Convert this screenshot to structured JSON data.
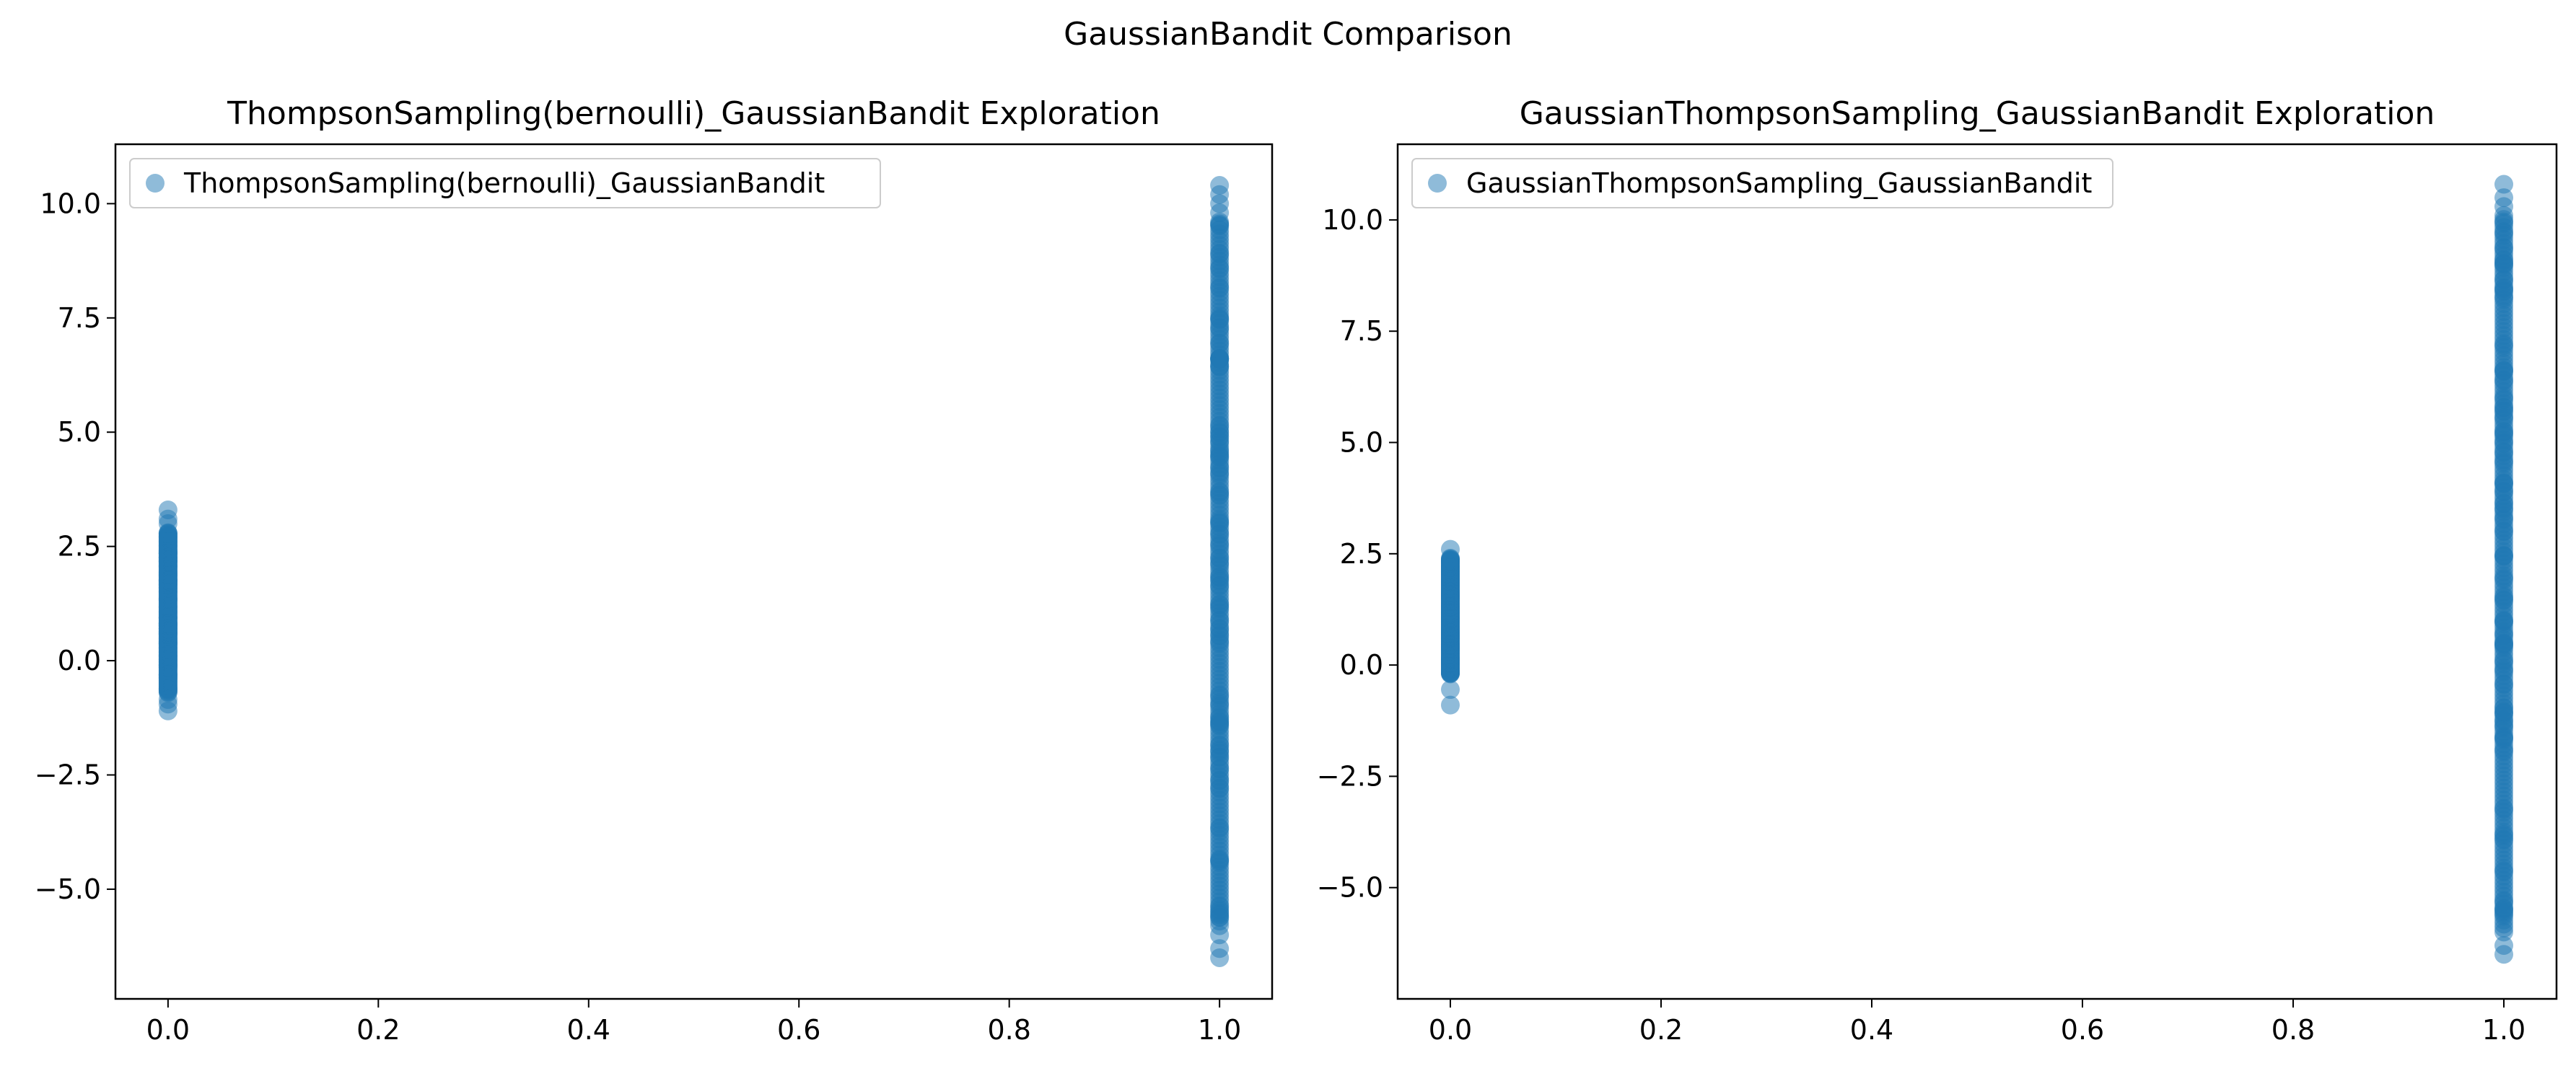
{
  "figure": {
    "suptitle": "GaussianBandit Comparison",
    "background": "#ffffff"
  },
  "chart_data": [
    {
      "type": "scatter",
      "title": "ThompsonSampling(bernoulli)_GaussianBandit Exploration",
      "xlabel": "",
      "ylabel": "",
      "xlim": [
        -0.05,
        1.05
      ],
      "ylim": [
        -7.4,
        11.3
      ],
      "x_ticks": [
        0.0,
        0.2,
        0.4,
        0.6,
        0.8,
        1.0
      ],
      "x_tick_labels": [
        "0.0",
        "0.2",
        "0.4",
        "0.6",
        "0.8",
        "1.0"
      ],
      "y_ticks": [
        -5.0,
        -2.5,
        0.0,
        2.5,
        5.0,
        7.5,
        10.0
      ],
      "y_tick_labels": [
        "−5.0",
        "−2.5",
        "0.0",
        "2.5",
        "5.0",
        "7.5",
        "10.0"
      ],
      "grid": false,
      "legend": {
        "location": "upper-left",
        "entries": [
          "ThompsonSampling(bernoulli)_GaussianBandit"
        ]
      },
      "series": [
        {
          "name": "ThompsonSampling(bernoulli)_GaussianBandit",
          "color": "#1f77b4",
          "alpha": 0.5,
          "clusters": [
            {
              "x": 0.0,
              "y_min": -1.1,
              "y_max": 3.3,
              "dense_min": -0.7,
              "dense_max": 2.8,
              "outliers": [
                -1.1,
                -0.95,
                -0.85,
                3.0,
                3.1,
                3.3
              ]
            },
            {
              "x": 1.0,
              "y_min": -6.5,
              "y_max": 10.4,
              "dense_min": -5.7,
              "dense_max": 9.6,
              "outliers": [
                -6.5,
                -6.3,
                -6.0,
                -5.8,
                9.8,
                10.0,
                10.2,
                10.4
              ]
            }
          ]
        }
      ]
    },
    {
      "type": "scatter",
      "title": "GaussianThompsonSampling_GaussianBandit Exploration",
      "xlabel": "",
      "ylabel": "",
      "xlim": [
        -0.05,
        1.05
      ],
      "ylim": [
        -7.5,
        11.7
      ],
      "x_ticks": [
        0.0,
        0.2,
        0.4,
        0.6,
        0.8,
        1.0
      ],
      "x_tick_labels": [
        "0.0",
        "0.2",
        "0.4",
        "0.6",
        "0.8",
        "1.0"
      ],
      "y_ticks": [
        -5.0,
        -2.5,
        0.0,
        2.5,
        5.0,
        7.5,
        10.0
      ],
      "y_tick_labels": [
        "−5.0",
        "−2.5",
        "0.0",
        "2.5",
        "5.0",
        "7.5",
        "10.0"
      ],
      "grid": false,
      "legend": {
        "location": "upper-left",
        "entries": [
          "GaussianThompsonSampling_GaussianBandit"
        ]
      },
      "series": [
        {
          "name": "GaussianThompsonSampling_GaussianBandit",
          "color": "#1f77b4",
          "alpha": 0.5,
          "clusters": [
            {
              "x": 0.0,
              "y_min": -0.9,
              "y_max": 2.6,
              "dense_min": -0.2,
              "dense_max": 2.4,
              "outliers": [
                -0.9,
                -0.55,
                2.6
              ]
            },
            {
              "x": 1.0,
              "y_min": -6.5,
              "y_max": 10.8,
              "dense_min": -6.0,
              "dense_max": 10.1,
              "outliers": [
                -6.5,
                -6.3,
                10.3,
                10.5,
                10.8
              ]
            }
          ]
        }
      ]
    }
  ]
}
